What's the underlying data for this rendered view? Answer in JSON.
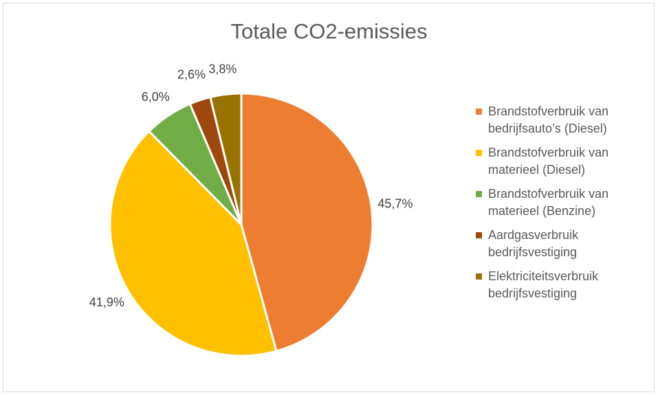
{
  "chart_data": {
    "type": "pie",
    "title": "Totale CO2-emissies",
    "categories": [
      "Brandstofverbruik van bedrijfsauto’s (Diesel)",
      "Brandstofverbruik van materieel (Diesel)",
      "Brandstofverbruik van materieel (Benzine)",
      "Aardgasverbruik bedrijfsvestiging",
      "Elektriciteitsverbruik bedrijfsvestiging"
    ],
    "legend_labels": [
      "Brandstofverbruik van\nbedrijfsauto’s (Diesel)",
      "Brandstofverbruik van\nmaterieel (Diesel)",
      "Brandstofverbruik van\nmaterieel (Benzine)",
      "Aardgasverbruik\nbedrijfsvestiging",
      "Elektriciteitsverbruik\nbedrijfsvestiging"
    ],
    "values": [
      45.7,
      41.9,
      6.0,
      2.6,
      3.8
    ],
    "data_labels": [
      "45,7%",
      "41,9%",
      "6,0%",
      "2,6%",
      "3,8%"
    ],
    "colors": [
      "#ED7D31",
      "#FFC000",
      "#70AD47",
      "#9E480E",
      "#997300"
    ],
    "legend_position": "right"
  }
}
